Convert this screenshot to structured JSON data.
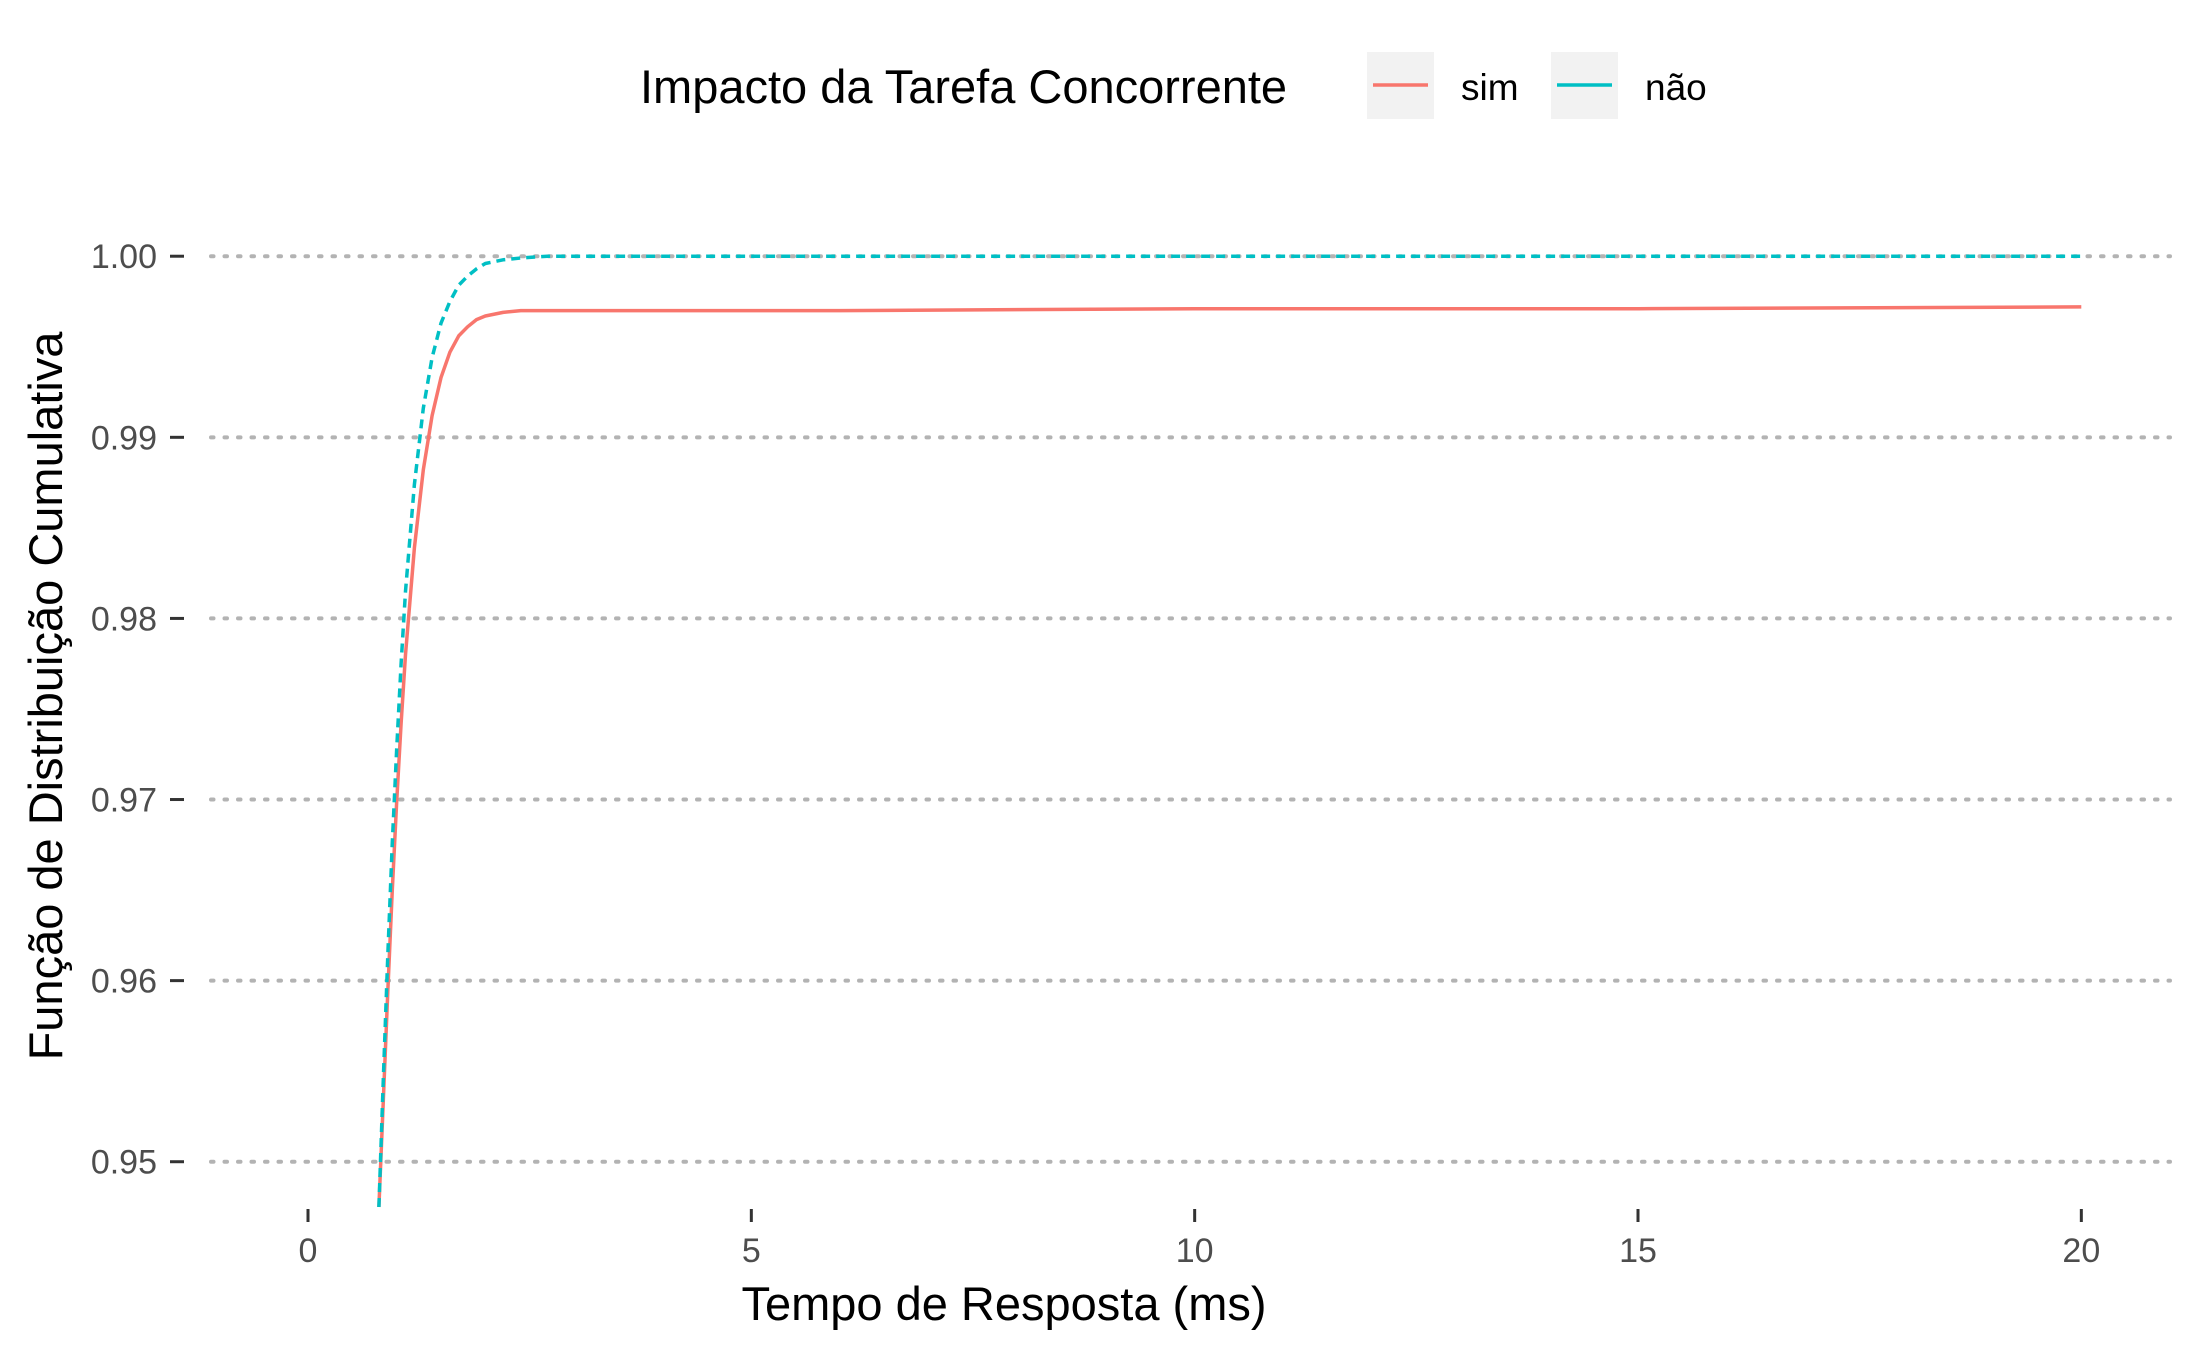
{
  "chart_data": {
    "type": "line",
    "xlabel": "Tempo de Resposta (ms)",
    "ylabel": "Função de Distribuição Cumulativa",
    "xlim": [
      -1.5,
      21
    ],
    "ylim": [
      0.9475,
      1.002
    ],
    "x_ticks": [
      0,
      5,
      10,
      15,
      20
    ],
    "x_tick_labels": [
      "0",
      "5",
      "10",
      "15",
      "20"
    ],
    "y_ticks": [
      0.95,
      0.96,
      0.97,
      0.98,
      0.99,
      1.0
    ],
    "y_tick_labels": [
      "0.95",
      "0.96",
      "0.97",
      "0.98",
      "0.99",
      "1.00"
    ],
    "grid": "horizontal dotted",
    "legend": {
      "title": "Impacto da Tarefa Concorrente",
      "position": "top",
      "entries": [
        "sim",
        "não"
      ]
    },
    "series": [
      {
        "name": "sim",
        "color": "#F8766D",
        "dash": "solid",
        "x": [
          0.8,
          0.85,
          0.9,
          0.95,
          1.0,
          1.05,
          1.1,
          1.2,
          1.3,
          1.4,
          1.5,
          1.6,
          1.7,
          1.8,
          1.9,
          2.0,
          2.2,
          2.4,
          2.7,
          3.0,
          4.0,
          6.0,
          10.0,
          15.0,
          20.0
        ],
        "y": [
          0.9475,
          0.9535,
          0.9594,
          0.9649,
          0.9699,
          0.9742,
          0.978,
          0.9839,
          0.9882,
          0.9912,
          0.9933,
          0.9947,
          0.9956,
          0.9961,
          0.9965,
          0.9967,
          0.9969,
          0.997,
          0.997,
          0.997,
          0.997,
          0.997,
          0.9971,
          0.9971,
          0.9972
        ]
      },
      {
        "name": "não",
        "color": "#00BFC4",
        "dash": "dashed",
        "x": [
          0.8,
          0.85,
          0.9,
          0.95,
          1.0,
          1.05,
          1.1,
          1.2,
          1.3,
          1.4,
          1.5,
          1.6,
          1.7,
          1.8,
          1.9,
          2.0,
          2.2,
          2.4,
          2.7,
          3.0,
          5.0,
          10.0,
          15.0,
          20.0
        ],
        "y": [
          0.9475,
          0.9547,
          0.9614,
          0.9675,
          0.9728,
          0.9775,
          0.9815,
          0.9874,
          0.9916,
          0.9944,
          0.9963,
          0.9975,
          0.9984,
          0.9989,
          0.9993,
          0.9996,
          0.9998,
          0.9999,
          1.0,
          1.0,
          1.0,
          1.0,
          1.0,
          1.0
        ]
      }
    ]
  }
}
